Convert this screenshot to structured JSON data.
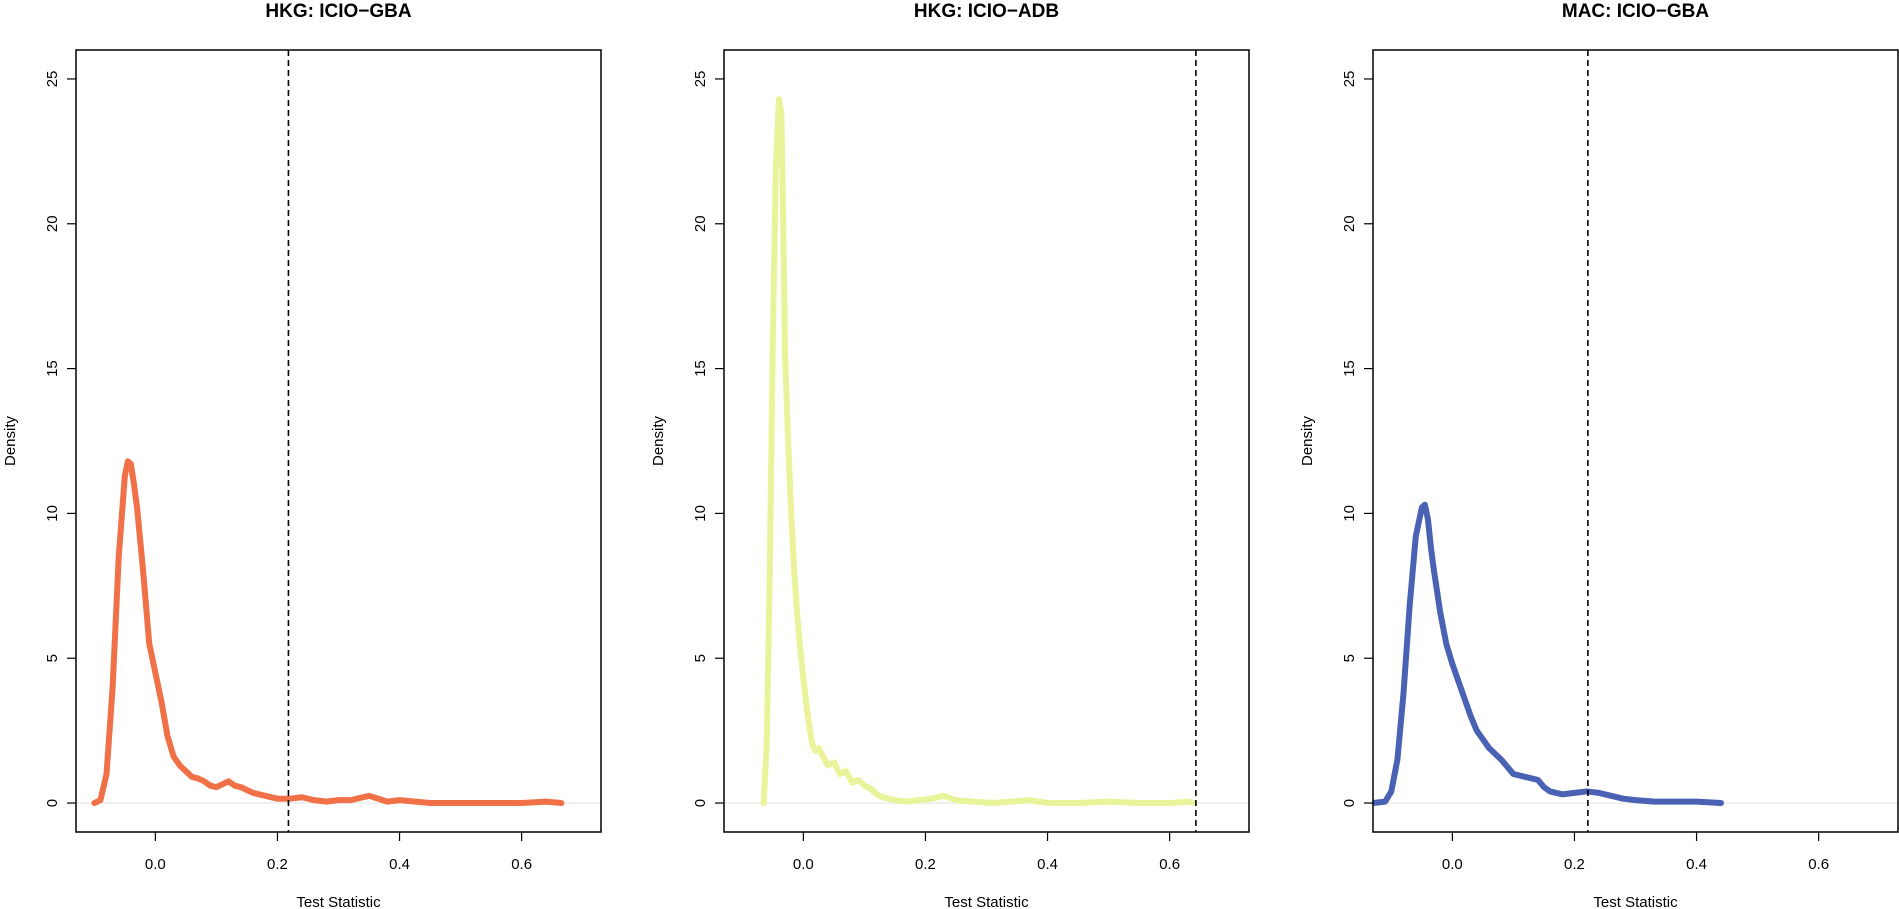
{
  "chart_data": [
    {
      "type": "line",
      "title": "HKG: ICIO−GBA",
      "xlabel": "Test Statistic",
      "ylabel": "Density",
      "xlim": [
        -0.13,
        0.73
      ],
      "ylim": [
        -1.0,
        26.0
      ],
      "xticks": [
        0.0,
        0.2,
        0.4,
        0.6
      ],
      "xtick_labels": [
        "0.0",
        "0.2",
        "0.4",
        "0.6"
      ],
      "yticks": [
        0,
        5,
        10,
        15,
        20,
        25
      ],
      "ytick_labels": [
        "0",
        "5",
        "10",
        "15",
        "20",
        "25"
      ],
      "color": "#f07048",
      "vline": 0.218,
      "vline_style": "dashed",
      "grid": false,
      "series": [
        {
          "x": [
            -0.1,
            -0.09,
            -0.08,
            -0.07,
            -0.06,
            -0.05,
            -0.045,
            -0.04,
            -0.035,
            -0.03,
            -0.02,
            -0.01,
            0.0,
            0.01,
            0.02,
            0.03,
            0.04,
            0.05,
            0.06,
            0.07,
            0.08,
            0.09,
            0.1,
            0.11,
            0.12,
            0.13,
            0.14,
            0.15,
            0.16,
            0.18,
            0.2,
            0.22,
            0.24,
            0.26,
            0.28,
            0.3,
            0.32,
            0.35,
            0.38,
            0.4,
            0.45,
            0.5,
            0.55,
            0.6,
            0.64,
            0.665
          ],
          "y": [
            0.0,
            0.1,
            1.0,
            4.0,
            8.5,
            11.3,
            11.8,
            11.7,
            11.0,
            10.2,
            8.0,
            5.5,
            4.5,
            3.5,
            2.3,
            1.6,
            1.3,
            1.1,
            0.9,
            0.85,
            0.75,
            0.6,
            0.55,
            0.65,
            0.75,
            0.6,
            0.55,
            0.45,
            0.35,
            0.25,
            0.15,
            0.15,
            0.2,
            0.1,
            0.05,
            0.1,
            0.1,
            0.25,
            0.05,
            0.1,
            0.0,
            0.0,
            0.0,
            0.0,
            0.05,
            0.0
          ]
        }
      ]
    },
    {
      "type": "line",
      "title": "HKG: ICIO−ADB",
      "xlabel": "Test Statistic",
      "ylabel": "Density",
      "xlim": [
        -0.13,
        0.73
      ],
      "ylim": [
        -1.0,
        26.0
      ],
      "xticks": [
        0.0,
        0.2,
        0.4,
        0.6
      ],
      "xtick_labels": [
        "0.0",
        "0.2",
        "0.4",
        "0.6"
      ],
      "yticks": [
        0,
        5,
        10,
        15,
        20,
        25
      ],
      "ytick_labels": [
        "0",
        "5",
        "10",
        "15",
        "20",
        "25"
      ],
      "color": "#e9f39a",
      "vline": 0.643,
      "vline_style": "dashed",
      "grid": false,
      "series": [
        {
          "x": [
            -0.065,
            -0.06,
            -0.055,
            -0.05,
            -0.045,
            -0.04,
            -0.036,
            -0.033,
            -0.03,
            -0.025,
            -0.02,
            -0.015,
            -0.01,
            -0.005,
            0.0,
            0.005,
            0.01,
            0.015,
            0.02,
            0.025,
            0.03,
            0.04,
            0.05,
            0.06,
            0.07,
            0.08,
            0.09,
            0.1,
            0.11,
            0.12,
            0.13,
            0.15,
            0.17,
            0.19,
            0.21,
            0.23,
            0.25,
            0.28,
            0.31,
            0.34,
            0.37,
            0.4,
            0.45,
            0.5,
            0.55,
            0.6,
            0.63,
            0.64
          ],
          "y": [
            0.0,
            2.0,
            8.0,
            16.0,
            22.0,
            24.3,
            23.8,
            20.0,
            15.5,
            12.5,
            10.0,
            8.0,
            6.5,
            5.3,
            4.3,
            3.4,
            2.6,
            2.0,
            1.8,
            1.9,
            1.7,
            1.3,
            1.4,
            1.0,
            1.1,
            0.7,
            0.8,
            0.6,
            0.5,
            0.3,
            0.2,
            0.1,
            0.05,
            0.1,
            0.15,
            0.25,
            0.1,
            0.05,
            0.0,
            0.05,
            0.1,
            0.0,
            0.0,
            0.05,
            0.0,
            0.0,
            0.05,
            0.0
          ]
        }
      ]
    },
    {
      "type": "line",
      "title": "MAC: ICIO−GBA",
      "xlabel": "Test Statistic",
      "ylabel": "Density",
      "xlim": [
        -0.13,
        0.73
      ],
      "ylim": [
        -1.0,
        26.0
      ],
      "xticks": [
        0.0,
        0.2,
        0.4,
        0.6
      ],
      "xtick_labels": [
        "0.0",
        "0.2",
        "0.4",
        "0.6"
      ],
      "yticks": [
        0,
        5,
        10,
        15,
        20,
        25
      ],
      "ytick_labels": [
        "0",
        "5",
        "10",
        "15",
        "20",
        "25"
      ],
      "color": "#4a62b4",
      "vline": 0.222,
      "vline_style": "dashed",
      "grid": false,
      "series": [
        {
          "x": [
            -0.13,
            -0.11,
            -0.1,
            -0.09,
            -0.08,
            -0.07,
            -0.06,
            -0.05,
            -0.045,
            -0.04,
            -0.035,
            -0.03,
            -0.02,
            -0.01,
            0.0,
            0.01,
            0.02,
            0.03,
            0.04,
            0.05,
            0.06,
            0.08,
            0.1,
            0.12,
            0.13,
            0.14,
            0.15,
            0.16,
            0.18,
            0.2,
            0.22,
            0.24,
            0.26,
            0.28,
            0.3,
            0.33,
            0.36,
            0.4,
            0.44
          ],
          "y": [
            0.0,
            0.05,
            0.4,
            1.5,
            3.8,
            6.8,
            9.2,
            10.2,
            10.3,
            9.8,
            8.8,
            8.0,
            6.6,
            5.5,
            4.8,
            4.2,
            3.6,
            3.0,
            2.5,
            2.2,
            1.9,
            1.5,
            1.0,
            0.9,
            0.85,
            0.8,
            0.55,
            0.4,
            0.3,
            0.35,
            0.4,
            0.35,
            0.25,
            0.15,
            0.1,
            0.05,
            0.05,
            0.05,
            0.0
          ]
        }
      ]
    }
  ]
}
